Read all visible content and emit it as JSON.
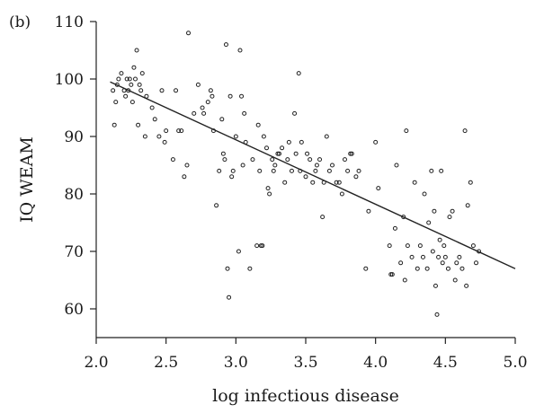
{
  "chart_data": {
    "type": "scatter",
    "panel_label": "(b)",
    "title": "",
    "xlabel": "log infectious disease",
    "ylabel": "IQ WEAM",
    "xlim": [
      2.0,
      5.0
    ],
    "ylim": [
      55,
      110
    ],
    "x_ticks": [
      2.0,
      2.5,
      3.0,
      3.5,
      4.0,
      4.5,
      5.0
    ],
    "x_tick_labels": [
      "2.0",
      "2.5",
      "3.0",
      "3.5",
      "4.0",
      "4.5",
      "5.0"
    ],
    "y_ticks": [
      60,
      70,
      80,
      90,
      100,
      110
    ],
    "y_tick_labels": [
      "60",
      "70",
      "80",
      "90",
      "100",
      "110"
    ],
    "grid": false,
    "fit_line": {
      "x": [
        2.1,
        5.0
      ],
      "y": [
        99.5,
        67
      ]
    },
    "points": [
      [
        2.12,
        98
      ],
      [
        2.13,
        92
      ],
      [
        2.14,
        96
      ],
      [
        2.15,
        99
      ],
      [
        2.16,
        100
      ],
      [
        2.18,
        101
      ],
      [
        2.2,
        98
      ],
      [
        2.21,
        97
      ],
      [
        2.22,
        100
      ],
      [
        2.23,
        98
      ],
      [
        2.24,
        100
      ],
      [
        2.25,
        99
      ],
      [
        2.26,
        96
      ],
      [
        2.27,
        102
      ],
      [
        2.28,
        100
      ],
      [
        2.29,
        105
      ],
      [
        2.3,
        92
      ],
      [
        2.31,
        99
      ],
      [
        2.32,
        98
      ],
      [
        2.33,
        101
      ],
      [
        2.35,
        90
      ],
      [
        2.36,
        97
      ],
      [
        2.4,
        95
      ],
      [
        2.42,
        93
      ],
      [
        2.45,
        90
      ],
      [
        2.47,
        98
      ],
      [
        2.49,
        89
      ],
      [
        2.5,
        91
      ],
      [
        2.55,
        86
      ],
      [
        2.57,
        98
      ],
      [
        2.59,
        91
      ],
      [
        2.61,
        91
      ],
      [
        2.63,
        83
      ],
      [
        2.66,
        108
      ],
      [
        2.65,
        85
      ],
      [
        2.7,
        94
      ],
      [
        2.73,
        99
      ],
      [
        2.76,
        95
      ],
      [
        2.77,
        94
      ],
      [
        2.8,
        96
      ],
      [
        2.82,
        98
      ],
      [
        2.83,
        97
      ],
      [
        2.84,
        91
      ],
      [
        2.86,
        78
      ],
      [
        2.88,
        84
      ],
      [
        2.9,
        93
      ],
      [
        2.91,
        87
      ],
      [
        2.92,
        86
      ],
      [
        2.93,
        106
      ],
      [
        2.94,
        67
      ],
      [
        2.95,
        62
      ],
      [
        2.96,
        97
      ],
      [
        2.97,
        83
      ],
      [
        2.98,
        84
      ],
      [
        3.0,
        90
      ],
      [
        3.02,
        70
      ],
      [
        3.03,
        105
      ],
      [
        3.04,
        97
      ],
      [
        3.05,
        85
      ],
      [
        3.06,
        94
      ],
      [
        3.07,
        89
      ],
      [
        3.1,
        67
      ],
      [
        3.12,
        86
      ],
      [
        3.15,
        71
      ],
      [
        3.16,
        92
      ],
      [
        3.17,
        84
      ],
      [
        3.18,
        71
      ],
      [
        3.19,
        71
      ],
      [
        3.2,
        90
      ],
      [
        3.22,
        88
      ],
      [
        3.23,
        81
      ],
      [
        3.24,
        80
      ],
      [
        3.26,
        86
      ],
      [
        3.27,
        84
      ],
      [
        3.28,
        85
      ],
      [
        3.3,
        87
      ],
      [
        3.31,
        87
      ],
      [
        3.33,
        88
      ],
      [
        3.35,
        82
      ],
      [
        3.37,
        86
      ],
      [
        3.38,
        89
      ],
      [
        3.4,
        84
      ],
      [
        3.42,
        94
      ],
      [
        3.43,
        87
      ],
      [
        3.45,
        101
      ],
      [
        3.46,
        84
      ],
      [
        3.47,
        89
      ],
      [
        3.5,
        83
      ],
      [
        3.51,
        87
      ],
      [
        3.53,
        86
      ],
      [
        3.55,
        82
      ],
      [
        3.57,
        84
      ],
      [
        3.58,
        85
      ],
      [
        3.6,
        86
      ],
      [
        3.62,
        76
      ],
      [
        3.63,
        82
      ],
      [
        3.65,
        90
      ],
      [
        3.67,
        84
      ],
      [
        3.69,
        85
      ],
      [
        3.72,
        82
      ],
      [
        3.74,
        82
      ],
      [
        3.76,
        80
      ],
      [
        3.78,
        86
      ],
      [
        3.8,
        84
      ],
      [
        3.82,
        87
      ],
      [
        3.83,
        87
      ],
      [
        3.86,
        83
      ],
      [
        3.88,
        84
      ],
      [
        3.93,
        67
      ],
      [
        3.95,
        77
      ],
      [
        4.0,
        89
      ],
      [
        4.02,
        81
      ],
      [
        4.1,
        71
      ],
      [
        4.11,
        66
      ],
      [
        4.12,
        66
      ],
      [
        4.14,
        74
      ],
      [
        4.15,
        85
      ],
      [
        4.18,
        68
      ],
      [
        4.2,
        76
      ],
      [
        4.21,
        65
      ],
      [
        4.22,
        91
      ],
      [
        4.23,
        71
      ],
      [
        4.26,
        69
      ],
      [
        4.28,
        82
      ],
      [
        4.3,
        67
      ],
      [
        4.32,
        71
      ],
      [
        4.34,
        69
      ],
      [
        4.35,
        80
      ],
      [
        4.37,
        67
      ],
      [
        4.38,
        75
      ],
      [
        4.4,
        84
      ],
      [
        4.41,
        70
      ],
      [
        4.42,
        77
      ],
      [
        4.43,
        64
      ],
      [
        4.44,
        59
      ],
      [
        4.45,
        69
      ],
      [
        4.46,
        72
      ],
      [
        4.47,
        84
      ],
      [
        4.48,
        68
      ],
      [
        4.49,
        71
      ],
      [
        4.5,
        69
      ],
      [
        4.52,
        67
      ],
      [
        4.53,
        76
      ],
      [
        4.55,
        77
      ],
      [
        4.57,
        65
      ],
      [
        4.58,
        68
      ],
      [
        4.6,
        69
      ],
      [
        4.62,
        67
      ],
      [
        4.64,
        91
      ],
      [
        4.65,
        64
      ],
      [
        4.66,
        78
      ],
      [
        4.68,
        82
      ],
      [
        4.7,
        71
      ],
      [
        4.72,
        68
      ],
      [
        4.74,
        70
      ]
    ]
  }
}
